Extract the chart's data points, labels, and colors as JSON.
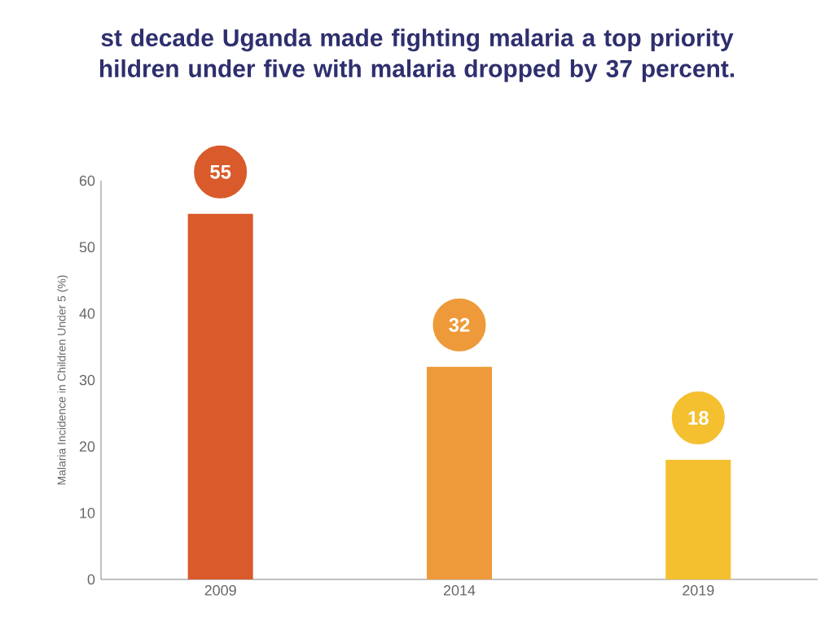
{
  "chart_data": {
    "type": "bar",
    "title": "st decade Uganda made fighting malaria a top priority\nhildren under five with malaria dropped by 37 percent.",
    "categories": [
      "2009",
      "2014",
      "2019"
    ],
    "values": [
      55,
      32,
      18
    ],
    "colors": [
      "#d95a2b",
      "#ee9a3a",
      "#f4c030"
    ],
    "ylabel": "Malaria Incidence in Children Under 5 (%)",
    "ylim": [
      0,
      60
    ],
    "yticks": [
      0,
      10,
      20,
      30,
      40,
      50,
      60
    ],
    "data_labels": true
  }
}
